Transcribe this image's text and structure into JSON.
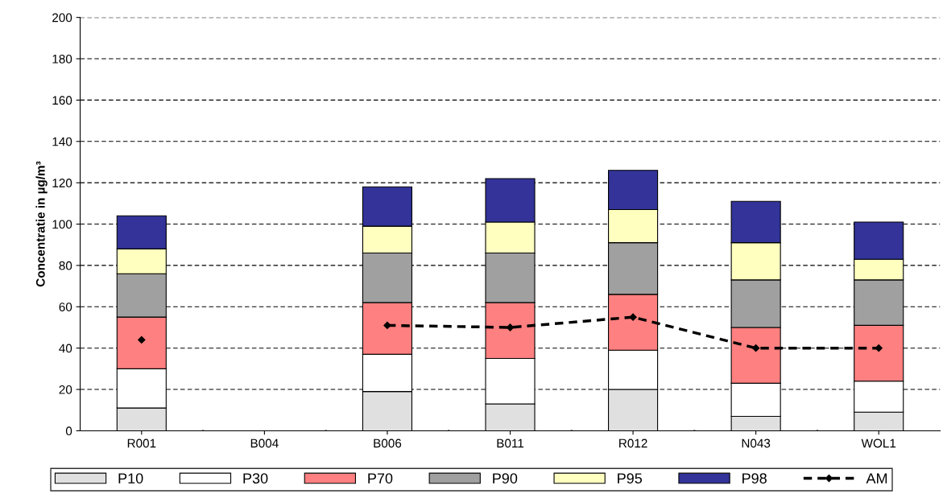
{
  "chart_data": {
    "type": "bar",
    "stacked": true,
    "ylabel": "Concentratie in µg/m³",
    "categories": [
      "R001",
      "B004",
      "B006",
      "B011",
      "R012",
      "N043",
      "WOL1"
    ],
    "ylim": [
      0,
      200
    ],
    "yticks": [
      0,
      20,
      40,
      60,
      80,
      100,
      120,
      140,
      160,
      180,
      200
    ],
    "grid": "y",
    "legend": "bottom",
    "series": [
      {
        "name": "P10",
        "color": "#e0e0e0",
        "values": [
          11,
          null,
          19,
          13,
          20,
          7,
          9
        ]
      },
      {
        "name": "P30",
        "color": "#ffffff",
        "values": [
          19,
          null,
          18,
          22,
          19,
          16,
          15
        ]
      },
      {
        "name": "P70",
        "color": "#ff8080",
        "values": [
          25,
          null,
          25,
          27,
          27,
          27,
          27
        ]
      },
      {
        "name": "P90",
        "color": "#a0a0a0",
        "values": [
          21,
          null,
          24,
          24,
          25,
          23,
          22
        ]
      },
      {
        "name": "P95",
        "color": "#ffffc0",
        "values": [
          12,
          null,
          13,
          15,
          16,
          18,
          10
        ]
      },
      {
        "name": "P98",
        "color": "#333399",
        "values": [
          16,
          null,
          19,
          21,
          19,
          20,
          18
        ]
      },
      {
        "name": "AM",
        "type": "line",
        "color": "#000000",
        "marker": "diamond",
        "line_style": "dashed",
        "values": [
          44,
          null,
          51,
          50,
          55,
          40,
          40
        ]
      }
    ]
  }
}
